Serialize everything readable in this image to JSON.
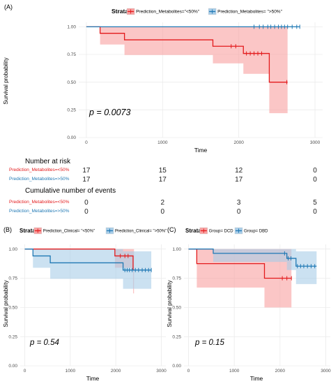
{
  "colors": {
    "low": "#e31a1c",
    "high": "#1f78b4",
    "low_fill": "#f8a0a0",
    "high_fill": "#a8cde8",
    "grid": "#ebebeb",
    "axis_text": "#4d4d4d"
  },
  "chart_data": [
    {
      "type": "line",
      "panel": "(A)",
      "legend_title": "Strata",
      "legend_position": "top",
      "xlabel": "Time",
      "ylabel": "Survival probability",
      "xlim": [
        -100,
        3100
      ],
      "ylim": [
        0,
        1.04
      ],
      "xticks": [
        0,
        1000,
        2000,
        3000
      ],
      "yticks": [
        0.0,
        0.25,
        0.5,
        0.75,
        1.0
      ],
      "ytick_format": 2,
      "grid": true,
      "pvalue": "p = 0.0073",
      "series": [
        {
          "name": "Prediction_Metabolites=\"<50%\"",
          "color_key": "low",
          "x": [
            0,
            180,
            500,
            1660,
            2060,
            2400
          ],
          "y": [
            1.0,
            0.941,
            0.882,
            0.824,
            0.759,
            0.5
          ],
          "upper": [
            1.0,
            1.0,
            1.0,
            1.0,
            1.0,
            1.0
          ],
          "lower": [
            1.0,
            0.84,
            0.745,
            0.67,
            0.575,
            0.22
          ],
          "end_x": 2640,
          "censors": [
            1900,
            1960,
            2100,
            2150,
            2200,
            2250,
            2300,
            2630
          ]
        },
        {
          "name": "Prediction_Metabolites= \">50%\"",
          "color_key": "high",
          "x": [
            0
          ],
          "y": [
            1.0
          ],
          "upper": [
            1.0
          ],
          "lower": [
            1.0
          ],
          "end_x": 2800,
          "censors": [
            2200,
            2270,
            2320,
            2380,
            2420,
            2470,
            2520,
            2560,
            2600,
            2640,
            2700,
            2760,
            2800
          ]
        }
      ]
    },
    {
      "type": "line",
      "panel": "(B)",
      "legend_title": "Strata",
      "legend_position": "top",
      "xlabel": "Time",
      "ylabel": "Survival probability",
      "xlim": [
        -100,
        3100
      ],
      "ylim": [
        0,
        1.04
      ],
      "xticks": [
        0,
        1000,
        2000,
        3000
      ],
      "yticks": [
        0.0,
        0.25,
        0.5,
        0.75,
        1.0
      ],
      "ytick_format": 2,
      "grid": true,
      "pvalue": "p = 0.54",
      "series": [
        {
          "name": "Prediction_Clinical= \"<50%\"",
          "color_key": "low",
          "x": [
            0,
            1980,
            2380
          ],
          "y": [
            1.0,
            0.941,
            0.82
          ],
          "upper": [
            1.0,
            1.0,
            1.0
          ],
          "lower": [
            1.0,
            0.84,
            0.62
          ],
          "end_x": 2400,
          "censors": [
            2100,
            2200,
            2270
          ]
        },
        {
          "name": "Prediction_Clinical= \">50%\"",
          "color_key": "high",
          "x": [
            0,
            180,
            560,
            2160
          ],
          "y": [
            1.0,
            0.941,
            0.882,
            0.82
          ],
          "upper": [
            1.0,
            1.0,
            1.0,
            0.98
          ],
          "lower": [
            1.0,
            0.84,
            0.745,
            0.66
          ],
          "end_x": 2780,
          "censors": [
            2200,
            2250,
            2300,
            2360,
            2430,
            2500,
            2580,
            2650,
            2720,
            2780
          ]
        }
      ]
    },
    {
      "type": "line",
      "panel": "(C)",
      "legend_title": "Strata",
      "legend_position": "top",
      "xlabel": "Time",
      "ylabel": "Survival probability",
      "xlim": [
        -100,
        3100
      ],
      "ylim": [
        0,
        1.04
      ],
      "xticks": [
        0,
        1000,
        2000,
        3000
      ],
      "yticks": [
        0.0,
        0.25,
        0.5,
        0.75,
        1.0
      ],
      "ytick_format": 2,
      "grid": true,
      "pvalue": "p = 0.15",
      "series": [
        {
          "name": "Group= DCD",
          "color_key": "low",
          "x": [
            0,
            180,
            1660
          ],
          "y": [
            1.0,
            0.875,
            0.75
          ],
          "upper": [
            1.0,
            1.0,
            1.0
          ],
          "lower": [
            1.0,
            0.67,
            0.5
          ],
          "end_x": 2250,
          "censors": [
            2050,
            2150,
            2250
          ]
        },
        {
          "name": "Group= DBD",
          "color_key": "high",
          "x": [
            0,
            540,
            2150,
            2350
          ],
          "y": [
            1.0,
            0.963,
            0.92,
            0.853
          ],
          "upper": [
            1.0,
            1.0,
            1.0,
            0.98
          ],
          "lower": [
            1.0,
            0.89,
            0.82,
            0.7
          ],
          "end_x": 2800,
          "censors": [
            2100,
            2180,
            2240,
            2380,
            2450,
            2520,
            2600,
            2680,
            2760
          ]
        }
      ]
    }
  ],
  "risk_table": {
    "title": "Number at risk",
    "times": [
      0,
      1000,
      2000,
      3000
    ],
    "rows": [
      {
        "label": "Prediction_Metabolites=<50%",
        "color_key": "low",
        "values": [
          "17",
          "15",
          "12",
          "0"
        ]
      },
      {
        "label": "Prediction_Metabolites=>50%",
        "color_key": "high",
        "values": [
          "17",
          "17",
          "17",
          "0"
        ]
      }
    ]
  },
  "events_table": {
    "title": "Cumulative number of events",
    "times": [
      0,
      1000,
      2000,
      3000
    ],
    "rows": [
      {
        "label": "Prediction_Metabolites=<50%",
        "color_key": "low",
        "values": [
          "0",
          "2",
          "3",
          "5"
        ]
      },
      {
        "label": "Prediction_Metabolites=>50%",
        "color_key": "high",
        "values": [
          "0",
          "0",
          "0",
          "0"
        ]
      }
    ]
  }
}
